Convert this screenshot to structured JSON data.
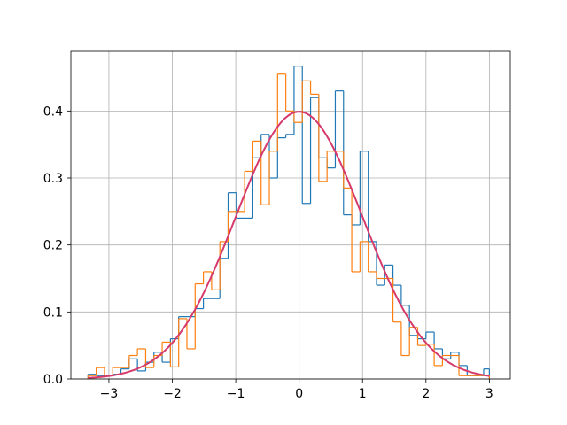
{
  "chart_data": {
    "type": "histogram",
    "title": "",
    "xlabel": "",
    "ylabel": "",
    "xlim": [
      -3.6,
      3.33
    ],
    "ylim": [
      0,
      0.489
    ],
    "grid": true,
    "x_ticks": [
      -3,
      -2,
      -1,
      0,
      1,
      2,
      3
    ],
    "x_tick_labels": [
      "−3",
      "−2",
      "−1",
      "0",
      "1",
      "2",
      "3"
    ],
    "y_ticks": [
      0.0,
      0.1,
      0.2,
      0.3,
      0.4
    ],
    "y_tick_labels": [
      "0.0",
      "0.1",
      "0.2",
      "0.3",
      "0.4"
    ],
    "colors": {
      "blue": "#1f77b4",
      "orange": "#ff7f0e",
      "curve": "#d63a6b"
    },
    "series": [
      {
        "style": "step",
        "color": "#1f77b4",
        "edges": [
          -3.33,
          -3.2,
          -3.07,
          -2.94,
          -2.81,
          -2.68,
          -2.55,
          -2.42,
          -2.29,
          -2.16,
          -2.03,
          -1.9,
          -1.77,
          -1.64,
          -1.51,
          -1.38,
          -1.25,
          -1.12,
          -0.99,
          -0.86,
          -0.73,
          -0.6,
          -0.47,
          -0.34,
          -0.21,
          -0.08,
          0.05,
          0.18,
          0.31,
          0.44,
          0.57,
          0.7,
          0.83,
          0.96,
          1.09,
          1.22,
          1.35,
          1.48,
          1.61,
          1.74,
          1.87,
          2.0,
          2.13,
          2.26,
          2.39,
          2.52,
          2.65,
          2.78,
          2.91,
          3.0
        ],
        "values": [
          0.007,
          0.005,
          0.005,
          0.007,
          0.015,
          0.03,
          0.012,
          0.025,
          0.04,
          0.025,
          0.06,
          0.093,
          0.093,
          0.105,
          0.12,
          0.12,
          0.18,
          0.278,
          0.24,
          0.24,
          0.33,
          0.365,
          0.3,
          0.36,
          0.365,
          0.467,
          0.262,
          0.42,
          0.33,
          0.315,
          0.43,
          0.245,
          0.23,
          0.34,
          0.205,
          0.14,
          0.17,
          0.14,
          0.11,
          0.065,
          0.06,
          0.07,
          0.045,
          0.03,
          0.04,
          0.02,
          0.005,
          0.005,
          0.015
        ]
      },
      {
        "style": "step",
        "color": "#ff7f0e",
        "edges": [
          -3.33,
          -3.2,
          -3.07,
          -2.94,
          -2.81,
          -2.68,
          -2.55,
          -2.42,
          -2.29,
          -2.16,
          -2.03,
          -1.9,
          -1.77,
          -1.64,
          -1.51,
          -1.38,
          -1.25,
          -1.12,
          -0.99,
          -0.86,
          -0.73,
          -0.6,
          -0.47,
          -0.34,
          -0.21,
          -0.08,
          0.05,
          0.18,
          0.31,
          0.44,
          0.57,
          0.7,
          0.83,
          0.96,
          1.09,
          1.22,
          1.35,
          1.48,
          1.61,
          1.74,
          1.87,
          2.0,
          2.13,
          2.26,
          2.39,
          2.52,
          2.65,
          2.78,
          2.91,
          3.0
        ],
        "values": [
          0.005,
          0.017,
          0.005,
          0.017,
          0.017,
          0.035,
          0.045,
          0.017,
          0.035,
          0.055,
          0.018,
          0.09,
          0.045,
          0.142,
          0.16,
          0.133,
          0.205,
          0.25,
          0.25,
          0.31,
          0.355,
          0.26,
          0.34,
          0.455,
          0.4,
          0.383,
          0.445,
          0.425,
          0.295,
          0.34,
          0.34,
          0.285,
          0.16,
          0.205,
          0.16,
          0.15,
          0.15,
          0.085,
          0.035,
          0.077,
          0.05,
          0.052,
          0.02,
          0.035,
          0.035,
          0.005,
          0.005,
          0.005,
          0.005
        ]
      },
      {
        "style": "line",
        "color": "#d63a6b",
        "distribution": "standard normal pdf",
        "x_range": [
          -3.33,
          3.0
        ]
      }
    ]
  }
}
